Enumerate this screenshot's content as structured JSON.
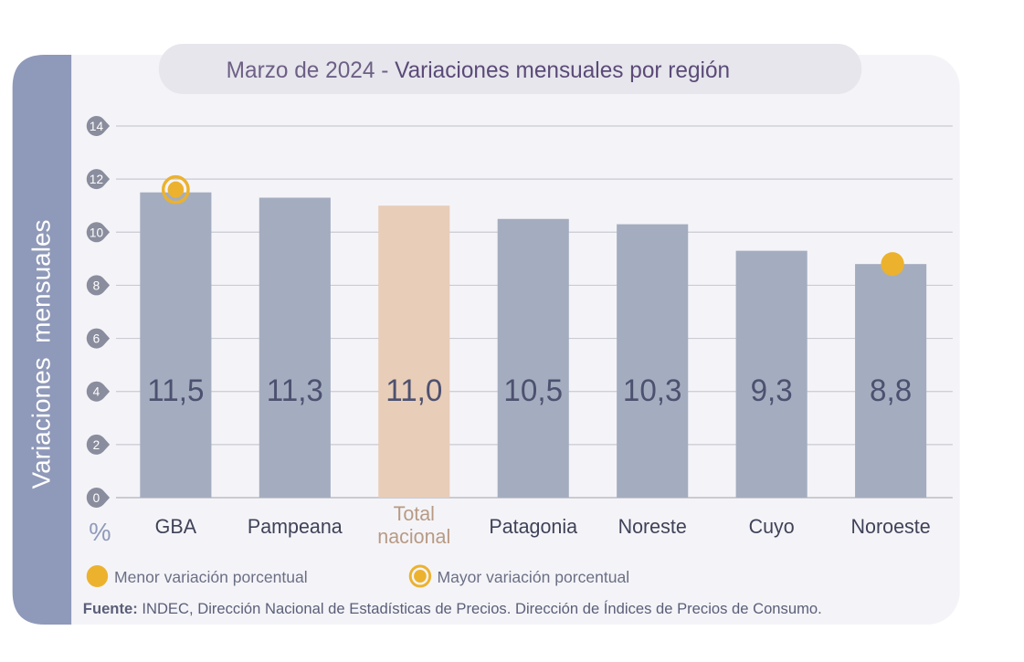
{
  "chart_data": {
    "type": "bar",
    "title_date": "Marzo de 2024",
    "title_sep": " - ",
    "title": "Variaciones mensuales por región",
    "ylabel": "Variaciones  mensuales",
    "yunit": "%",
    "ylim": [
      0,
      14
    ],
    "yticks": [
      0,
      2,
      4,
      6,
      8,
      10,
      12,
      14
    ],
    "grid": true,
    "categories": [
      {
        "lines": [
          "GBA"
        ]
      },
      {
        "lines": [
          "Pampeana"
        ]
      },
      {
        "lines": [
          "Patagonia"
        ]
      },
      {
        "lines": [
          "Noreste"
        ]
      },
      {
        "lines": [
          "Cuyo"
        ]
      },
      {
        "lines": [
          "Noroeste"
        ]
      }
    ],
    "bars": [
      {
        "name": "GBA",
        "label_lines": [
          "GBA"
        ],
        "value": 11.5,
        "value_label": "11,5",
        "highlight": false,
        "marker": "max"
      },
      {
        "name": "Pampeana",
        "label_lines": [
          "Pampeana"
        ],
        "value": 11.3,
        "value_label": "11,3",
        "highlight": false,
        "marker": null
      },
      {
        "name": "Total nacional",
        "label_lines": [
          "Total",
          "nacional"
        ],
        "value": 11.0,
        "value_label": "11,0",
        "highlight": true,
        "marker": null
      },
      {
        "name": "Patagonia",
        "label_lines": [
          "Patagonia"
        ],
        "value": 10.5,
        "value_label": "10,5",
        "highlight": false,
        "marker": null
      },
      {
        "name": "Noreste",
        "label_lines": [
          "Noreste"
        ],
        "value": 10.3,
        "value_label": "10,3",
        "highlight": false,
        "marker": null
      },
      {
        "name": "Cuyo",
        "label_lines": [
          "Cuyo"
        ],
        "value": 9.3,
        "value_label": "9,3",
        "highlight": false,
        "marker": null
      },
      {
        "name": "Noroeste",
        "label_lines": [
          "Noroeste"
        ],
        "value": 8.8,
        "value_label": "8,8",
        "highlight": false,
        "marker": "min"
      }
    ],
    "legend": [
      {
        "marker": "min",
        "label": "Menor variación porcentual"
      },
      {
        "marker": "max",
        "label": "Mayor variación porcentual"
      }
    ],
    "source_label": "Fuente:",
    "source_text": " INDEC, Dirección Nacional de Estadísticas de Precios. Dirección de Índices de Precios de Consumo.",
    "colors": {
      "bar": "#a4adbf",
      "bar_highlight": "#e8cdb8",
      "highlight_text": "#b89a84",
      "marker": "#ecb22e",
      "side_panel": "#8f99b9",
      "value_text": "#4d5170",
      "title_text": "#6e5f86"
    }
  }
}
